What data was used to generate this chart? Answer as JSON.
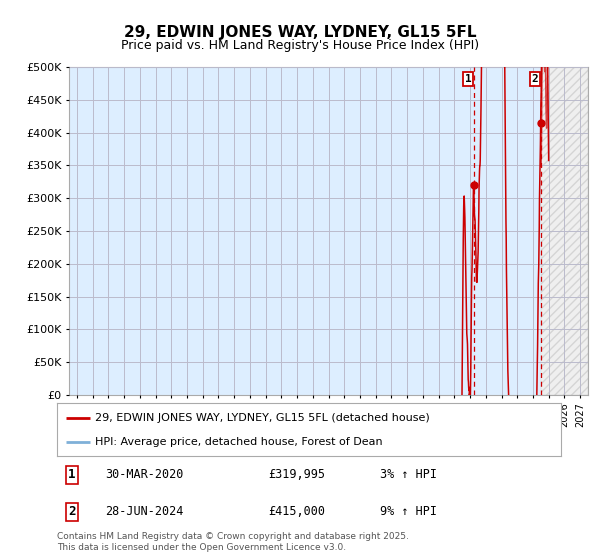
{
  "title": "29, EDWIN JONES WAY, LYDNEY, GL15 5FL",
  "subtitle": "Price paid vs. HM Land Registry's House Price Index (HPI)",
  "ylabel_ticks": [
    "£0",
    "£50K",
    "£100K",
    "£150K",
    "£200K",
    "£250K",
    "£300K",
    "£350K",
    "£400K",
    "£450K",
    "£500K"
  ],
  "ylim": [
    0,
    500000
  ],
  "xlim_start": 1994.5,
  "xlim_end": 2027.5,
  "marker1_x": 2020.23,
  "marker1_y": 319995,
  "marker2_x": 2024.49,
  "marker2_y": 415000,
  "legend_label1": "29, EDWIN JONES WAY, LYDNEY, GL15 5FL (detached house)",
  "legend_label2": "HPI: Average price, detached house, Forest of Dean",
  "marker1_date": "30-MAR-2020",
  "marker1_price": "£319,995",
  "marker1_hpi": "3% ↑ HPI",
  "marker2_date": "28-JUN-2024",
  "marker2_price": "£415,000",
  "marker2_hpi": "9% ↑ HPI",
  "footer": "Contains HM Land Registry data © Crown copyright and database right 2025.\nThis data is licensed under the Open Government Licence v3.0.",
  "line_color_red": "#cc0000",
  "line_color_blue": "#7fb0d8",
  "shade_color": "#ddeeff",
  "bg_color_main": "#ddeeff",
  "bg_color_future": "#e8e8e8",
  "grid_color": "#bbbbcc",
  "plot_bg": "#ffffff"
}
